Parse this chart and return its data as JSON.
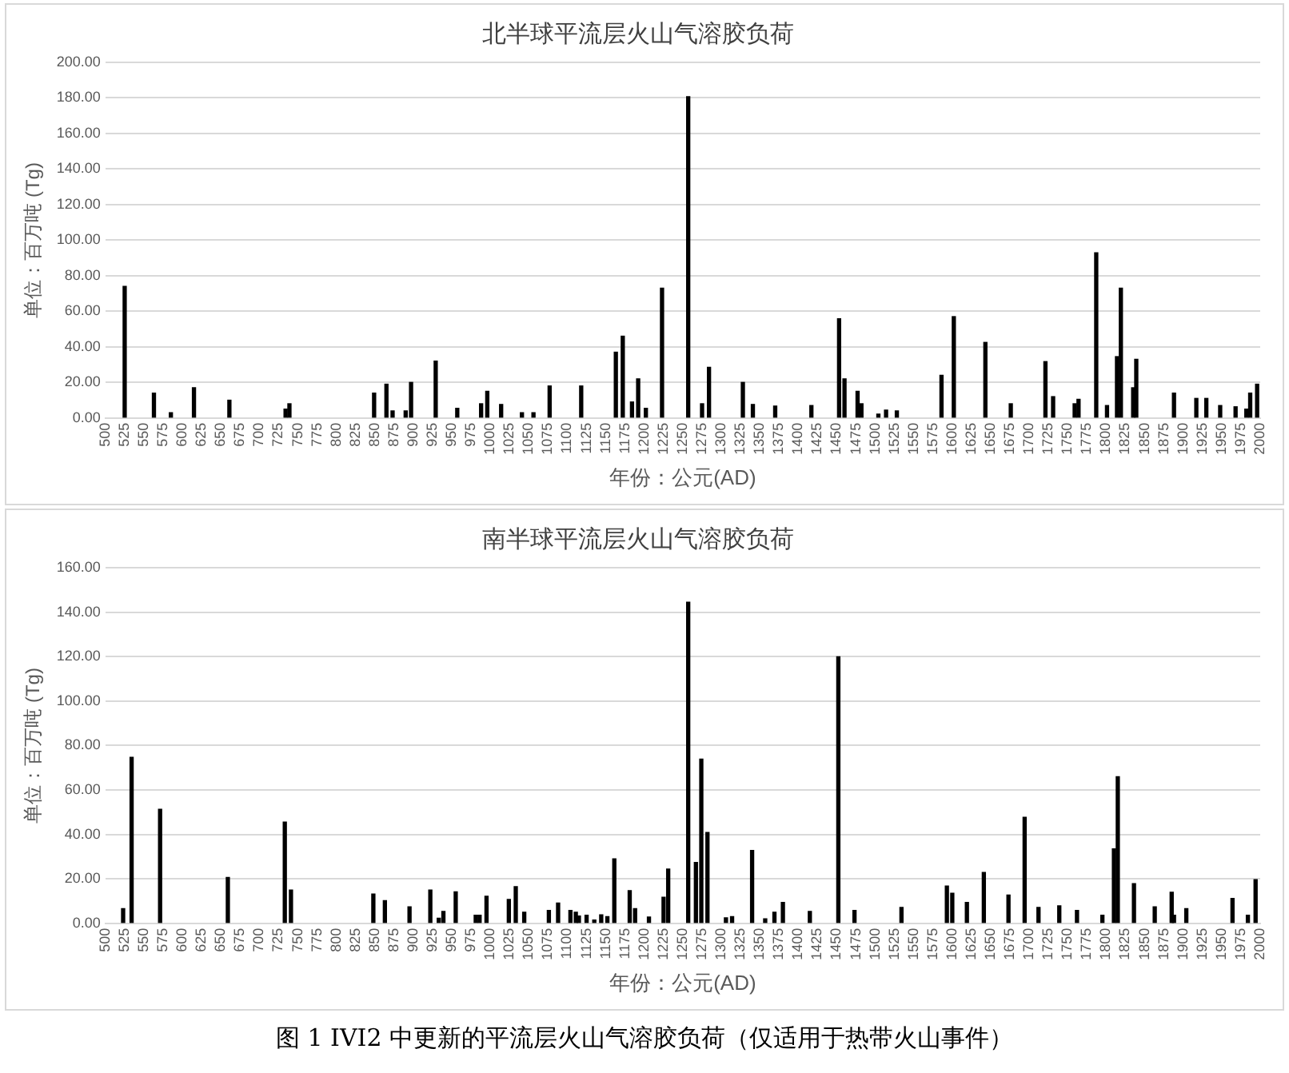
{
  "chart_data": [
    {
      "type": "bar",
      "title": "北半球平流层火山气溶胶负荷",
      "xlabel": "年份：公元(AD)",
      "ylabel": "单位：百万吨 (Tg)",
      "color": "#000000",
      "grid": "y",
      "legend": false,
      "x": [
        525,
        563,
        585,
        615,
        661,
        734,
        739,
        849,
        865,
        873,
        890,
        897,
        929,
        957,
        988,
        996,
        1014,
        1041,
        1056,
        1077,
        1118,
        1163,
        1172,
        1184,
        1192,
        1202,
        1223,
        1257,
        1275,
        1284,
        1328,
        1341,
        1370,
        1417,
        1453,
        1460,
        1477,
        1482,
        1504,
        1514,
        1528,
        1586,
        1602,
        1643,
        1676,
        1721,
        1731,
        1759,
        1764,
        1787,
        1801,
        1814,
        1819,
        1835,
        1839,
        1888,
        1917,
        1930,
        1948,
        1968,
        1982,
        1987,
        1996
      ],
      "values": [
        74,
        14,
        3,
        17,
        10,
        5,
        8,
        14,
        19,
        4,
        4,
        20,
        32,
        5.4,
        8,
        15,
        7.6,
        3,
        3,
        18,
        18,
        37,
        46,
        9,
        22,
        5.4,
        73,
        180.7,
        8,
        28.5,
        20,
        7.6,
        6.7,
        7,
        55.8,
        22,
        15,
        8,
        2.2,
        4.4,
        4,
        24,
        57,
        42.5,
        8,
        31.7,
        12,
        8,
        10.5,
        92.9,
        7,
        34.5,
        73,
        17,
        33,
        14,
        11,
        11,
        7,
        6.3,
        5,
        14,
        19
      ],
      "xlim": [
        500,
        2000
      ],
      "xticks": [
        500,
        525,
        550,
        575,
        600,
        625,
        650,
        675,
        700,
        725,
        750,
        775,
        800,
        825,
        850,
        875,
        900,
        925,
        950,
        975,
        1000,
        1025,
        1050,
        1075,
        1100,
        1125,
        1150,
        1175,
        1200,
        1225,
        1250,
        1275,
        1300,
        1325,
        1350,
        1375,
        1400,
        1425,
        1450,
        1475,
        1500,
        1525,
        1550,
        1575,
        1600,
        1625,
        1650,
        1675,
        1700,
        1725,
        1750,
        1775,
        1800,
        1825,
        1850,
        1875,
        1900,
        1925,
        1950,
        1975,
        2000
      ],
      "ylim": [
        0,
        200
      ],
      "yticks": [
        {
          "value": 0,
          "label": "0.00"
        },
        {
          "value": 20,
          "label": "20.00"
        },
        {
          "value": 40,
          "label": "40.00"
        },
        {
          "value": 60,
          "label": "60.00"
        },
        {
          "value": 80,
          "label": "80.00"
        },
        {
          "value": 100,
          "label": "100.00"
        },
        {
          "value": 120,
          "label": "120.00"
        },
        {
          "value": 140,
          "label": "140.00"
        },
        {
          "value": 160,
          "label": "160.00"
        },
        {
          "value": 180,
          "label": "180.00"
        },
        {
          "value": 200,
          "label": "200.00"
        }
      ]
    },
    {
      "type": "bar",
      "title": "南半球平流层火山气溶胶负荷",
      "xlabel": "年份：公元(AD)",
      "ylabel": "单位：百万吨 (Tg)",
      "color": "#000000",
      "grid": "y",
      "legend": false,
      "x": [
        523,
        534,
        571,
        659,
        733,
        741,
        848,
        863,
        895,
        922,
        933,
        939,
        955,
        981,
        986,
        995,
        1024,
        1033,
        1044,
        1076,
        1088,
        1104,
        1111,
        1115,
        1125,
        1135,
        1144,
        1152,
        1161,
        1181,
        1188,
        1206,
        1225,
        1231,
        1257,
        1267,
        1274,
        1282,
        1306,
        1314,
        1340,
        1357,
        1369,
        1380,
        1415,
        1452,
        1473,
        1534,
        1593,
        1600,
        1619,
        1641,
        1673,
        1694,
        1712,
        1739,
        1762,
        1795,
        1810,
        1815,
        1836,
        1863,
        1885,
        1888,
        1904,
        1964,
        1984,
        1994
      ],
      "values": [
        6.6,
        74.7,
        51.3,
        20.6,
        45.5,
        15,
        13.2,
        10.2,
        7.4,
        15,
        2.3,
        5.3,
        14.2,
        3.6,
        3.6,
        12.2,
        10.7,
        16.5,
        5,
        5.8,
        9.1,
        5.8,
        5,
        3.3,
        3.6,
        1.5,
        3.8,
        3,
        29,
        14.7,
        6.6,
        2.8,
        11.7,
        24.4,
        144.5,
        27.4,
        73.9,
        40.9,
        2.5,
        3,
        32.8,
        2,
        5,
        9.4,
        5.3,
        119.9,
        5.8,
        7.1,
        16.8,
        13.5,
        9.4,
        22.9,
        12.7,
        47.7,
        7.1,
        7.9,
        5.8,
        3.6,
        33.5,
        66,
        17.8,
        7.4,
        14,
        3.6,
        6.6,
        11.2,
        3.6,
        19.6
      ],
      "xlim": [
        500,
        2000
      ],
      "xticks": [
        500,
        525,
        550,
        575,
        600,
        625,
        650,
        675,
        700,
        725,
        750,
        775,
        800,
        825,
        850,
        875,
        900,
        925,
        950,
        975,
        1000,
        1025,
        1050,
        1075,
        1100,
        1125,
        1150,
        1175,
        1200,
        1225,
        1250,
        1275,
        1300,
        1325,
        1350,
        1375,
        1400,
        1425,
        1450,
        1475,
        1500,
        1525,
        1550,
        1575,
        1600,
        1625,
        1650,
        1675,
        1700,
        1725,
        1750,
        1775,
        1800,
        1825,
        1850,
        1875,
        1900,
        1925,
        1950,
        1975,
        2000
      ],
      "ylim": [
        0,
        160
      ],
      "yticks": [
        {
          "value": 0,
          "label": "0.00"
        },
        {
          "value": 20,
          "label": "20.00"
        },
        {
          "value": 40,
          "label": "40.00"
        },
        {
          "value": 60,
          "label": "60.00"
        },
        {
          "value": 80,
          "label": "80.00"
        },
        {
          "value": 100,
          "label": "100.00"
        },
        {
          "value": 120,
          "label": "120.00"
        },
        {
          "value": 140,
          "label": "140.00"
        },
        {
          "value": 160,
          "label": "160.00"
        }
      ],
      "annotations": [
        "图 1 IVI2 中更新的平流层火山气溶胶负荷（仅适用于热带火山事件）"
      ]
    }
  ]
}
